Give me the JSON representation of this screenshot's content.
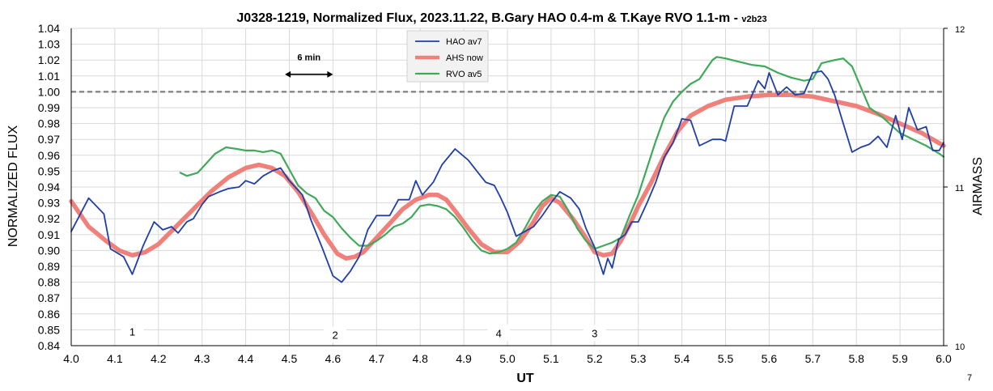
{
  "chart_data": {
    "type": "line",
    "title": "J0328-1219, Normalized Flux, 2023.11.22, B.Gary HAO 0.4-m & T.Kaye RVO 1.1-m - ",
    "title_suffix": "v2b23",
    "xlabel": "UT",
    "ylabel": "NORMALIZED FLUX",
    "y2label": "AIRMASS",
    "xlim": [
      4.0,
      6.0
    ],
    "ylim": [
      0.84,
      1.04
    ],
    "y2lim": [
      10,
      12
    ],
    "x_ticks": [
      "4.0",
      "4.1",
      "4.2",
      "4.3",
      "4.4",
      "4.5",
      "4.6",
      "4.7",
      "4.8",
      "4.9",
      "5.0",
      "5.1",
      "5.2",
      "5.3",
      "5.4",
      "5.5",
      "5.6",
      "5.7",
      "5.8",
      "5.9",
      "6.0"
    ],
    "y_ticks": [
      "0.84",
      "0.85",
      "0.86",
      "0.87",
      "0.88",
      "0.89",
      "0.90",
      "0.91",
      "0.92",
      "0.93",
      "0.94",
      "0.95",
      "0.96",
      "0.97",
      "0.98",
      "0.99",
      "1.00",
      "1.01",
      "1.02",
      "1.03",
      "1.04"
    ],
    "y2_ticks": [
      "10",
      "11",
      "12"
    ],
    "grid": true,
    "legend_position": "top-center",
    "reference_line": {
      "y": 1.0,
      "style": "dashed",
      "color": "#7f7f7f"
    },
    "annotations": [
      {
        "text": "6 min",
        "type": "double-arrow",
        "x_start": 4.49,
        "x_end": 4.6,
        "y": 1.011,
        "label_y": 1.022
      },
      {
        "text": "1",
        "x": 4.14,
        "y": 0.849
      },
      {
        "text": "2",
        "x": 4.605,
        "y": 0.847
      },
      {
        "text": "4",
        "x": 4.98,
        "y": 0.848
      },
      {
        "text": "3",
        "x": 5.2,
        "y": 0.848
      }
    ],
    "corner_text": "7",
    "series": [
      {
        "name": "HAO av7",
        "color": "#1f3fa8",
        "width": 1.8,
        "x": [
          4.0,
          4.04,
          4.075,
          4.09,
          4.12,
          4.14,
          4.165,
          4.19,
          4.21,
          4.23,
          4.245,
          4.265,
          4.28,
          4.3,
          4.315,
          4.34,
          4.36,
          4.385,
          4.4,
          4.42,
          4.44,
          4.46,
          4.48,
          4.5,
          4.53,
          4.55,
          4.575,
          4.6,
          4.62,
          4.64,
          4.66,
          4.68,
          4.7,
          4.71,
          4.73,
          4.75,
          4.76,
          4.775,
          4.79,
          4.805,
          4.83,
          4.85,
          4.88,
          4.91,
          4.93,
          4.95,
          4.97,
          4.985,
          5.0,
          5.02,
          5.04,
          5.06,
          5.08,
          5.1,
          5.12,
          5.145,
          5.165,
          5.18,
          5.2,
          5.22,
          5.23,
          5.24,
          5.255,
          5.27,
          5.285,
          5.3,
          5.32,
          5.34,
          5.36,
          5.38,
          5.4,
          5.42,
          5.44,
          5.47,
          5.49,
          5.5,
          5.52,
          5.55,
          5.575,
          5.59,
          5.6,
          5.62,
          5.64,
          5.66,
          5.68,
          5.7,
          5.72,
          5.735,
          5.75,
          5.77,
          5.79,
          5.81,
          5.83,
          5.85,
          5.87,
          5.89,
          5.905,
          5.92,
          5.94,
          5.96,
          5.975,
          5.99,
          6.0
        ],
        "y": [
          0.912,
          0.933,
          0.923,
          0.901,
          0.896,
          0.885,
          0.903,
          0.918,
          0.913,
          0.915,
          0.911,
          0.918,
          0.92,
          0.929,
          0.934,
          0.937,
          0.939,
          0.94,
          0.944,
          0.942,
          0.947,
          0.95,
          0.952,
          0.944,
          0.935,
          0.919,
          0.902,
          0.884,
          0.88,
          0.887,
          0.896,
          0.913,
          0.922,
          0.922,
          0.922,
          0.932,
          0.932,
          0.932,
          0.944,
          0.935,
          0.943,
          0.954,
          0.964,
          0.957,
          0.95,
          0.943,
          0.941,
          0.933,
          0.924,
          0.909,
          0.912,
          0.915,
          0.922,
          0.93,
          0.937,
          0.933,
          0.926,
          0.914,
          0.902,
          0.885,
          0.895,
          0.889,
          0.907,
          0.91,
          0.918,
          0.918,
          0.93,
          0.943,
          0.959,
          0.968,
          0.983,
          0.982,
          0.966,
          0.97,
          0.97,
          0.969,
          0.991,
          0.991,
          1.007,
          1.002,
          1.012,
          0.998,
          1.003,
          0.998,
          0.999,
          1.012,
          1.013,
          1.008,
          0.998,
          0.98,
          0.962,
          0.965,
          0.967,
          0.972,
          0.965,
          0.985,
          0.97,
          0.99,
          0.976,
          0.978,
          0.963,
          0.963,
          0.968
        ]
      },
      {
        "name": "AHS now",
        "color": "#f0807a",
        "width": 5.5,
        "x": [
          4.0,
          4.04,
          4.08,
          4.11,
          4.14,
          4.17,
          4.2,
          4.24,
          4.28,
          4.32,
          4.36,
          4.4,
          4.43,
          4.46,
          4.49,
          4.52,
          4.55,
          4.58,
          4.61,
          4.63,
          4.65,
          4.67,
          4.7,
          4.73,
          4.76,
          4.79,
          4.82,
          4.84,
          4.86,
          4.88,
          4.91,
          4.94,
          4.97,
          5.0,
          5.03,
          5.06,
          5.08,
          5.1,
          5.12,
          5.15,
          5.18,
          5.2,
          5.22,
          5.24,
          5.26,
          5.28,
          5.3,
          5.33,
          5.36,
          5.39,
          5.42,
          5.46,
          5.5,
          5.55,
          5.6,
          5.65,
          5.7,
          5.75,
          5.8,
          5.85,
          5.9,
          5.95,
          6.0
        ],
        "y": [
          0.931,
          0.915,
          0.906,
          0.9,
          0.897,
          0.899,
          0.904,
          0.915,
          0.926,
          0.937,
          0.946,
          0.952,
          0.954,
          0.952,
          0.947,
          0.937,
          0.924,
          0.91,
          0.898,
          0.895,
          0.896,
          0.899,
          0.908,
          0.917,
          0.926,
          0.932,
          0.935,
          0.935,
          0.932,
          0.925,
          0.914,
          0.904,
          0.899,
          0.899,
          0.906,
          0.918,
          0.928,
          0.933,
          0.93,
          0.92,
          0.908,
          0.899,
          0.897,
          0.898,
          0.906,
          0.916,
          0.928,
          0.943,
          0.96,
          0.975,
          0.985,
          0.991,
          0.995,
          0.997,
          0.998,
          0.998,
          0.997,
          0.994,
          0.991,
          0.986,
          0.98,
          0.974,
          0.966
        ]
      },
      {
        "name": "RVO av5",
        "color": "#3faa5a",
        "width": 2.2,
        "x": [
          4.25,
          4.265,
          4.29,
          4.31,
          4.33,
          4.355,
          4.38,
          4.4,
          4.42,
          4.44,
          4.46,
          4.48,
          4.5,
          4.52,
          4.54,
          4.56,
          4.58,
          4.6,
          4.62,
          4.64,
          4.66,
          4.68,
          4.7,
          4.72,
          4.74,
          4.76,
          4.78,
          4.8,
          4.82,
          4.84,
          4.86,
          4.88,
          4.9,
          4.92,
          4.94,
          4.96,
          4.98,
          5.0,
          5.02,
          5.04,
          5.06,
          5.08,
          5.1,
          5.12,
          5.14,
          5.16,
          5.18,
          5.2,
          5.22,
          5.24,
          5.26,
          5.28,
          5.3,
          5.32,
          5.34,
          5.36,
          5.38,
          5.4,
          5.42,
          5.44,
          5.46,
          5.47,
          5.48,
          5.5,
          5.53,
          5.56,
          5.59,
          5.62,
          5.65,
          5.68,
          5.7,
          5.72,
          5.75,
          5.77,
          5.79,
          5.81,
          5.83,
          5.86,
          5.9,
          5.93,
          5.96,
          5.99,
          6.0
        ],
        "y": [
          0.949,
          0.947,
          0.949,
          0.955,
          0.961,
          0.965,
          0.964,
          0.963,
          0.963,
          0.962,
          0.963,
          0.961,
          0.951,
          0.941,
          0.936,
          0.933,
          0.925,
          0.921,
          0.914,
          0.908,
          0.903,
          0.903,
          0.906,
          0.91,
          0.915,
          0.917,
          0.921,
          0.928,
          0.929,
          0.928,
          0.926,
          0.921,
          0.914,
          0.906,
          0.9,
          0.898,
          0.899,
          0.901,
          0.905,
          0.914,
          0.924,
          0.931,
          0.935,
          0.934,
          0.925,
          0.914,
          0.906,
          0.901,
          0.903,
          0.905,
          0.908,
          0.922,
          0.935,
          0.952,
          0.969,
          0.984,
          0.994,
          1.0,
          1.005,
          1.008,
          1.016,
          1.02,
          1.022,
          1.021,
          1.019,
          1.017,
          1.016,
          1.012,
          1.009,
          1.007,
          1.008,
          1.018,
          1.02,
          1.021,
          1.016,
          1.003,
          0.99,
          0.984,
          0.974,
          0.97,
          0.966,
          0.961,
          0.959
        ]
      }
    ]
  }
}
